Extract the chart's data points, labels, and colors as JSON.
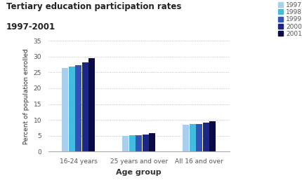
{
  "title_line1": "Tertiary education participation rates",
  "title_line2": "1997-2001",
  "xlabel": "Age group",
  "ylabel": "Percent of population enrolled",
  "categories": [
    "16-24 years",
    "25 years and over",
    "All 16 and over"
  ],
  "years": [
    "1997",
    "1998",
    "1999",
    "2000",
    "2001"
  ],
  "colors": [
    "#aacfee",
    "#44bce0",
    "#3355bb",
    "#1a2788",
    "#0a0a44"
  ],
  "values": {
    "16-24 years": [
      26.3,
      26.8,
      27.3,
      28.2,
      29.4
    ],
    "25 years and over": [
      5.0,
      5.2,
      5.1,
      5.3,
      5.8
    ],
    "All 16 and over": [
      8.6,
      8.7,
      8.7,
      9.1,
      9.7
    ]
  },
  "ylim": [
    0,
    35
  ],
  "yticks": [
    0,
    5,
    10,
    15,
    20,
    25,
    30,
    35
  ],
  "background_color": "#ffffff",
  "grid_color": "#bbbbbb",
  "title_fontsize": 8.5,
  "axis_label_fontsize": 8,
  "tick_fontsize": 6.5,
  "legend_fontsize": 6.5
}
